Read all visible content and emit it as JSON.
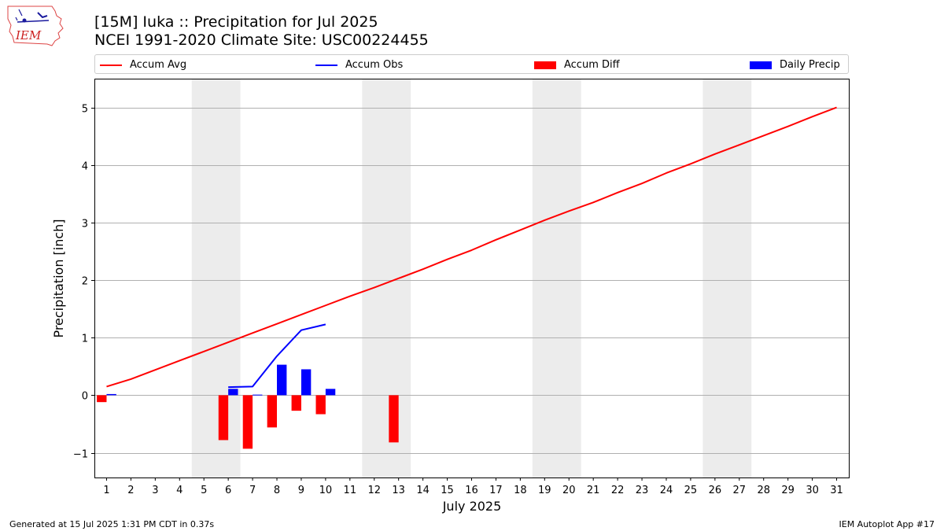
{
  "logo": {
    "text": "IEM"
  },
  "title_line1": "[15M] Iuka :: Precipitation for Jul 2025",
  "title_line2": "NCEI 1991-2020 Climate Site: USC00224455",
  "legend": [
    {
      "label": "Accum Avg",
      "color": "#ff0000",
      "kind": "line"
    },
    {
      "label": "Accum Obs",
      "color": "#0000ff",
      "kind": "line"
    },
    {
      "label": "Accum Diff",
      "color": "#ff0000",
      "kind": "bar"
    },
    {
      "label": "Daily Precip",
      "color": "#0000ff",
      "kind": "bar"
    }
  ],
  "footer_left": "Generated at 15 Jul 2025 1:31 PM CDT in 0.37s",
  "footer_right": "IEM Autoplot App #17",
  "chart_data": {
    "type": "bar",
    "xlabel": "July 2025",
    "ylabel": "Precipitation [inch]",
    "ylim": [
      -1.43,
      5.5
    ],
    "xlim": [
      0.5,
      31.5
    ],
    "yticks": [
      -1,
      0,
      1,
      2,
      3,
      4,
      5
    ],
    "ytick_labels": [
      "−1",
      "0",
      "1",
      "2",
      "3",
      "4",
      "5"
    ],
    "xticks": [
      1,
      2,
      3,
      4,
      5,
      6,
      7,
      8,
      9,
      10,
      11,
      12,
      13,
      14,
      15,
      16,
      17,
      18,
      19,
      20,
      21,
      22,
      23,
      24,
      25,
      26,
      27,
      28,
      29,
      30,
      31
    ],
    "grid": "horizontal",
    "weekend_shading": [
      [
        5,
        6
      ],
      [
        12,
        13
      ],
      [
        19,
        20
      ],
      [
        26,
        27
      ]
    ],
    "accum_avg": {
      "days": [
        1,
        2,
        3,
        4,
        5,
        6,
        7,
        8,
        9,
        10,
        11,
        12,
        13,
        14,
        15,
        16,
        17,
        18,
        19,
        20,
        21,
        22,
        23,
        24,
        25,
        26,
        27,
        28,
        29,
        30,
        31
      ],
      "values": [
        0.15,
        0.28,
        0.44,
        0.6,
        0.76,
        0.92,
        1.08,
        1.24,
        1.4,
        1.56,
        1.72,
        1.87,
        2.03,
        2.19,
        2.36,
        2.52,
        2.7,
        2.87,
        3.04,
        3.2,
        3.35,
        3.52,
        3.68,
        3.86,
        4.02,
        4.19,
        4.35,
        4.51,
        4.67,
        4.84,
        5.0
      ],
      "color": "#ff0000"
    },
    "accum_obs": {
      "days": [
        6,
        7,
        8,
        9,
        10
      ],
      "values": [
        0.14,
        0.15,
        0.68,
        1.13,
        1.23
      ],
      "color": "#0000ff"
    },
    "accum_diff": {
      "days": [
        1,
        6,
        7,
        8,
        9,
        10,
        13
      ],
      "values": [
        -0.12,
        -0.78,
        -0.93,
        -0.56,
        -0.27,
        -0.33,
        -0.82
      ],
      "color": "#ff0000"
    },
    "daily_precip": {
      "days": [
        1,
        6,
        7,
        8,
        9,
        10
      ],
      "values": [
        0.02,
        0.11,
        0.01,
        0.53,
        0.45,
        0.11
      ],
      "color": "#0000ff"
    }
  }
}
